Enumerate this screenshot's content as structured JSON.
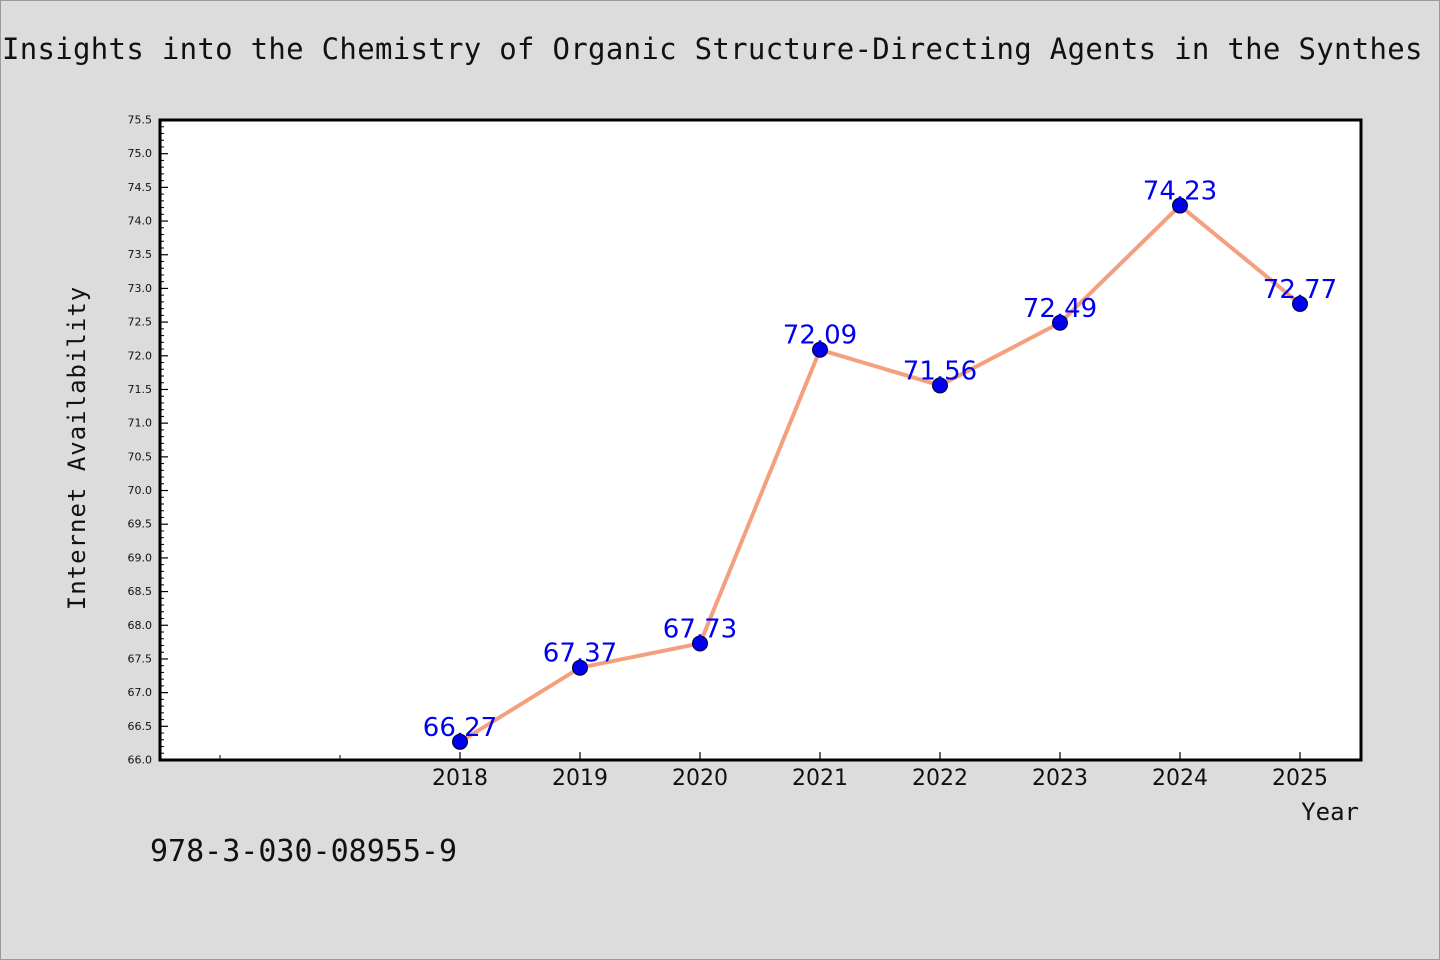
{
  "chart_data": {
    "type": "line",
    "title": "Insights into the Chemistry of Organic Structure-Directing Agents in the Synthes",
    "xlabel": "Year",
    "ylabel": "Internet Availability",
    "x": [
      "2018",
      "2019",
      "2020",
      "2021",
      "2022",
      "2023",
      "2024",
      "2025"
    ],
    "values": [
      66.27,
      67.37,
      67.73,
      72.09,
      71.56,
      72.49,
      74.23,
      72.77
    ],
    "data_labels": [
      "66.27",
      "67.37",
      "67.73",
      "72.09",
      "71.56",
      "72.49",
      "74.23",
      "72.77"
    ],
    "ylim": [
      66.0,
      75.5
    ],
    "y_ticks": [
      "66.0",
      "66.5",
      "67.0",
      "67.5",
      "68.0",
      "68.5",
      "69.0",
      "69.5",
      "70.0",
      "70.5",
      "71.0",
      "71.5",
      "72.0",
      "72.5",
      "73.0",
      "73.5",
      "74.0",
      "74.5",
      "75.0",
      "75.5"
    ],
    "grid": false,
    "line_color": "#f4a07e",
    "marker_color": "#0000ee",
    "label_color": "#0000ee"
  },
  "footer": {
    "isbn": "978-3-030-08955-9"
  }
}
